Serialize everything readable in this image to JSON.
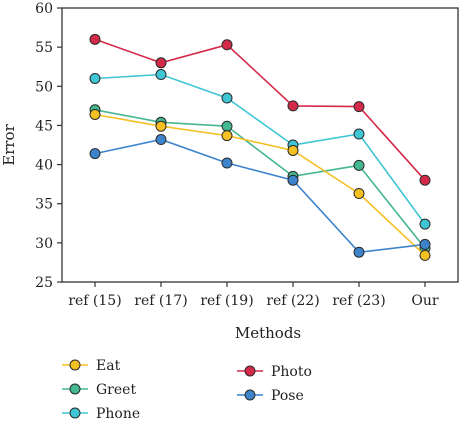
{
  "chart_data": {
    "type": "line",
    "categories": [
      "ref (15)",
      "ref (17)",
      "ref (19)",
      "ref (22)",
      "ref (23)",
      "Our"
    ],
    "xlabel": "Methods",
    "ylabel": "Error",
    "ylim": [
      25,
      60
    ],
    "yticks": [
      25,
      30,
      35,
      40,
      45,
      50,
      55,
      60
    ],
    "grid": false,
    "legend_position": "bottom",
    "series": [
      {
        "name": "Photo",
        "color": "#d42a4a",
        "values": [
          56.0,
          53.0,
          55.3,
          47.5,
          47.4,
          38.0
        ]
      },
      {
        "name": "Phone",
        "color": "#3ec6d4",
        "values": [
          51.0,
          51.5,
          48.5,
          42.5,
          43.9,
          32.4
        ]
      },
      {
        "name": "Greet",
        "color": "#45b88f",
        "values": [
          47.0,
          45.4,
          44.9,
          38.5,
          39.9,
          29.3
        ]
      },
      {
        "name": "Eat",
        "color": "#f4c022",
        "values": [
          46.4,
          44.9,
          43.7,
          41.8,
          36.3,
          28.4
        ]
      },
      {
        "name": "Pose",
        "color": "#3d84cc",
        "values": [
          41.4,
          43.2,
          40.2,
          38.0,
          28.8,
          29.8
        ]
      }
    ]
  }
}
